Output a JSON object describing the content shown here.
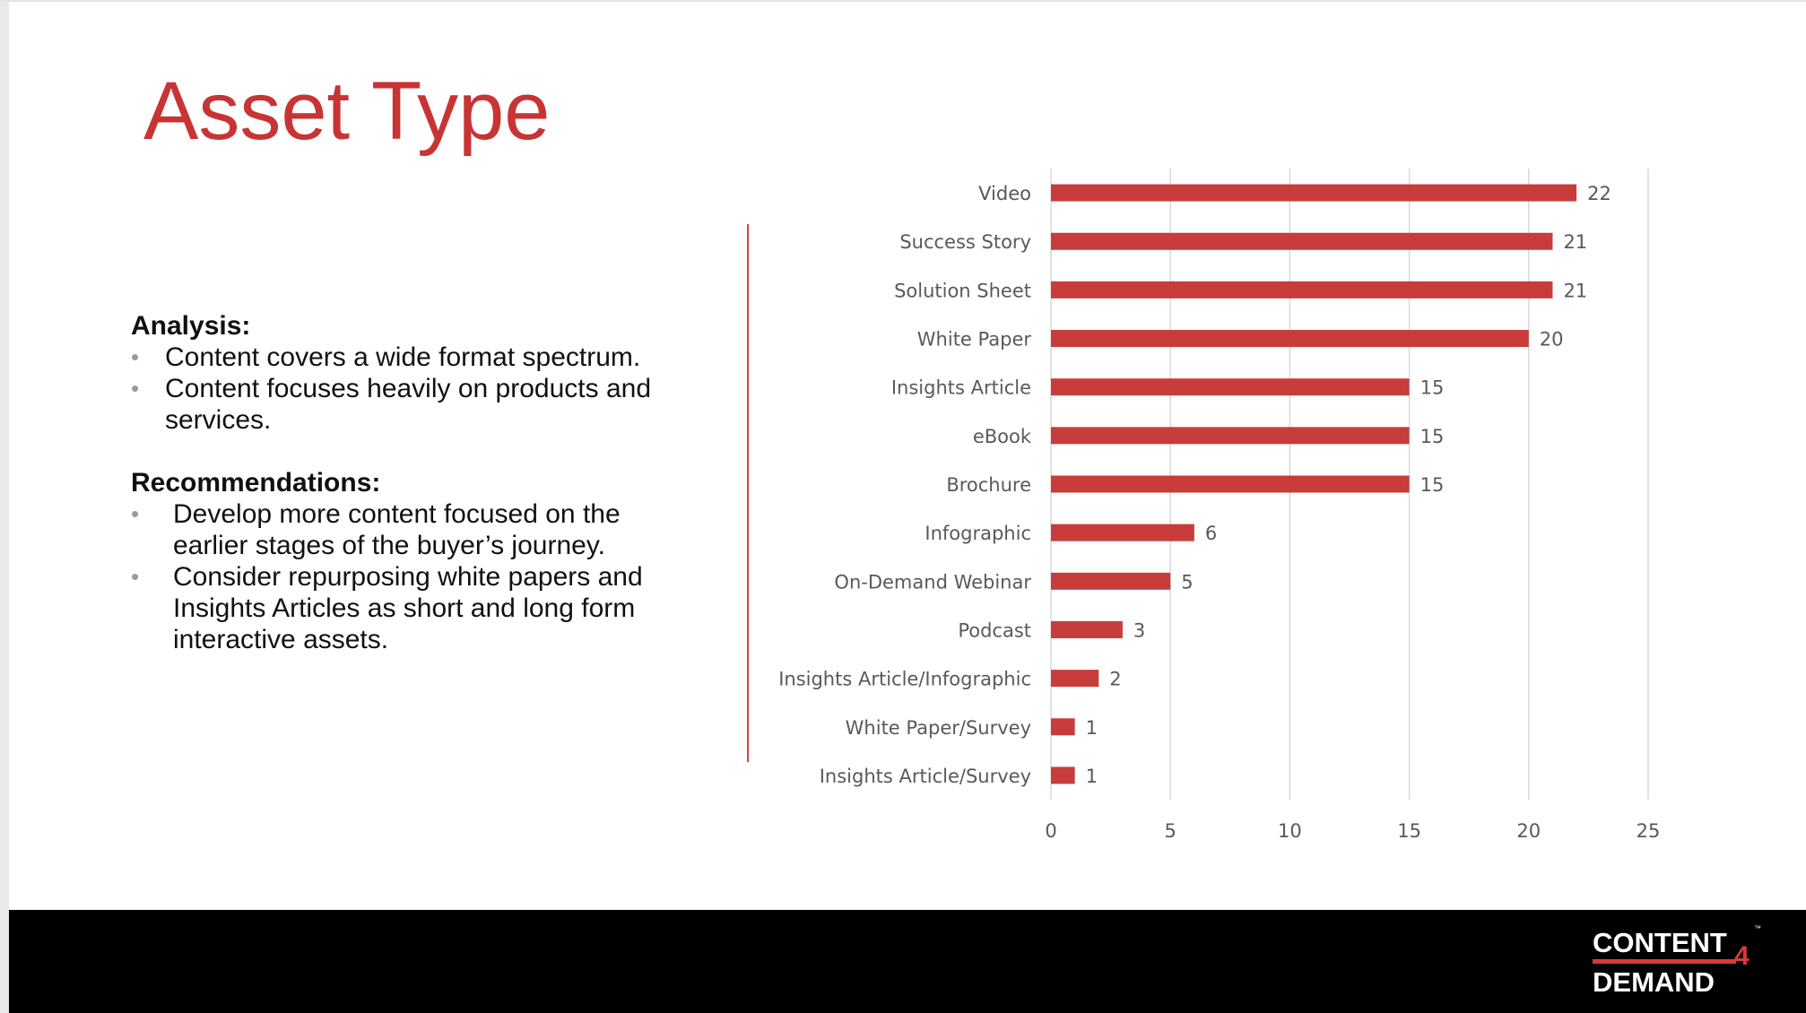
{
  "slide": {
    "title": "Asset Type",
    "analysis": {
      "heading": "Analysis:",
      "bullets": [
        "Content covers a wide format spectrum.",
        "Content focuses heavily on products and services."
      ]
    },
    "recommendations": {
      "heading": "Recommendations:",
      "bullets": [
        "Develop more content focused on the earlier stages of the buyer’s journey.",
        "Consider repurposing white papers and Insights Articles as short and long form interactive assets."
      ]
    },
    "bullet_glyph": "•",
    "logo": {
      "line1": "CONTENT",
      "number": "4",
      "line2": "DEMAND",
      "tm": "™"
    }
  },
  "colors": {
    "accent": "#c83434",
    "bar": "#c83c3c",
    "footer": "#000000",
    "grid": "#d9d9d9",
    "text": "#111111",
    "axis_text": "#595959"
  },
  "chart_data": {
    "type": "bar",
    "orientation": "horizontal",
    "categories": [
      "Video",
      "Success Story",
      "Solution Sheet",
      "White Paper",
      "Insights Article",
      "eBook",
      "Brochure",
      "Infographic",
      "On-Demand Webinar",
      "Podcast",
      "Insights Article/Infographic",
      "White Paper/Survey",
      "Insights Article/Survey"
    ],
    "values": [
      22,
      21,
      21,
      20,
      15,
      15,
      15,
      6,
      5,
      3,
      2,
      1,
      1
    ],
    "title": "",
    "xlabel": "",
    "ylabel": "",
    "xlim": [
      0,
      25
    ],
    "xticks": [
      0,
      5,
      10,
      15,
      20,
      25
    ],
    "grid": true,
    "data_labels": true,
    "legend": "none"
  }
}
